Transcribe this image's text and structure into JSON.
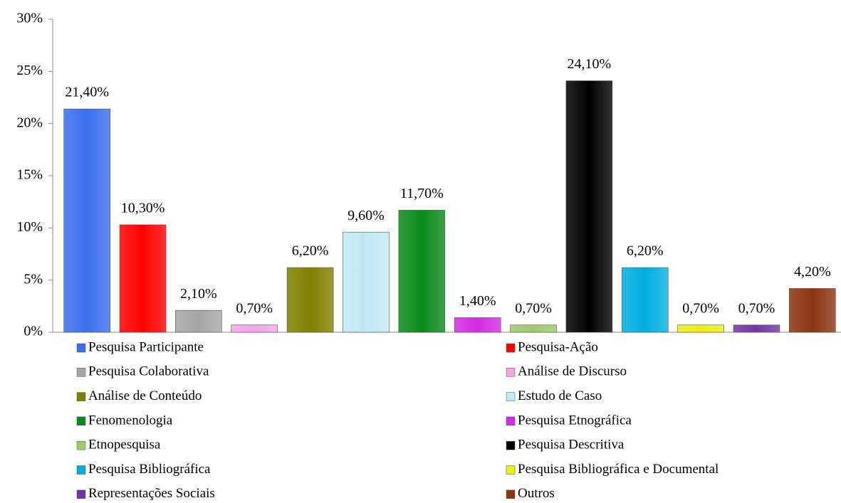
{
  "chart_data": {
    "type": "bar",
    "categories": [
      "Pesquisa Participante",
      "Pesquisa-Ação",
      "Pesquisa Colaborativa",
      "Análise de Discurso",
      "Análise de Conteúdo",
      "Estudo de Caso",
      "Fenomenologia",
      "Pesquisa Etnográfica",
      "Etnopesquisa",
      "Pesquisa Descritiva",
      "Pesquisa Bibliográfica",
      "Pesquisa Bibliográfica e Documental",
      "Representações Sociais",
      "Outros"
    ],
    "values": [
      21.4,
      10.3,
      2.1,
      0.7,
      6.2,
      9.6,
      11.7,
      1.4,
      0.7,
      24.1,
      6.2,
      0.7,
      0.7,
      4.2
    ],
    "value_labels": [
      "21,40%",
      "10,30%",
      "2,10%",
      "0,70%",
      "6,20%",
      "9,60%",
      "11,70%",
      "1,40%",
      "0,70%",
      "24,10%",
      "6,20%",
      "0,70%",
      "0,70%",
      "4,20%"
    ],
    "colors": [
      "#3a6fee",
      "#ff0000",
      "#a6a6a6",
      "#f2a6e6",
      "#808000",
      "#c0e8f2",
      "#0a8a1a",
      "#d62ae6",
      "#9ccc6a",
      "#000000",
      "#00aee0",
      "#eeee10",
      "#7434a6",
      "#8b3510"
    ],
    "ylim": [
      0,
      30
    ],
    "yticks": [
      {
        "value": 0,
        "label": "0%"
      },
      {
        "value": 5,
        "label": "5%"
      },
      {
        "value": 10,
        "label": "10%"
      },
      {
        "value": 15,
        "label": "15%"
      },
      {
        "value": 20,
        "label": "20%"
      },
      {
        "value": 25,
        "label": "25%"
      },
      {
        "value": 30,
        "label": "30%"
      }
    ],
    "legend": "bottom"
  }
}
